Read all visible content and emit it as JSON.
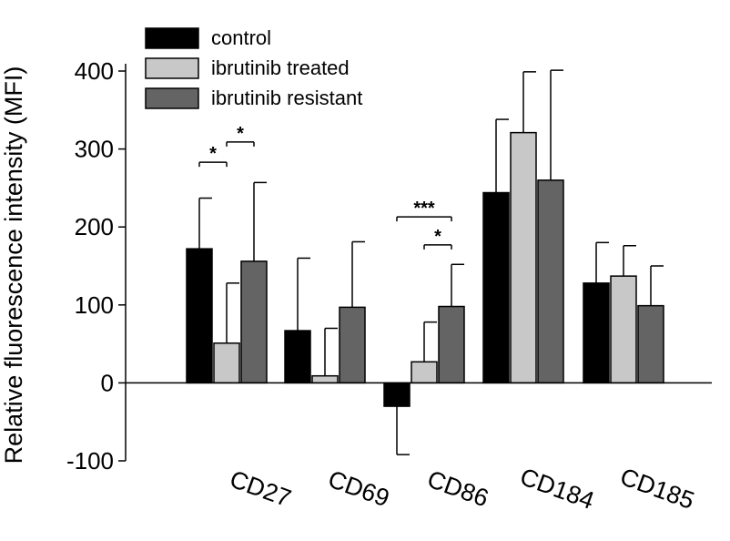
{
  "chart_data": {
    "type": "bar",
    "ylabel": "Relative fluorescence intensity (MFI)",
    "xlabel": "",
    "ylim": [
      -100,
      400
    ],
    "yticks": [
      -100,
      0,
      100,
      200,
      300,
      400
    ],
    "categories": [
      "CD27",
      "CD69",
      "CD86",
      "CD184",
      "CD185"
    ],
    "series": [
      {
        "name": "control",
        "color": "#000000",
        "values": [
          172,
          67,
          -30,
          244,
          128
        ],
        "errors": [
          65,
          93,
          62,
          94,
          52
        ]
      },
      {
        "name": "ibrutinib treated",
        "color": "#c8c8c8",
        "values": [
          51,
          9,
          27,
          321,
          137
        ],
        "errors": [
          77,
          61,
          51,
          78,
          39
        ]
      },
      {
        "name": "ibrutinib resistant",
        "color": "#646464",
        "values": [
          156,
          97,
          98,
          260,
          99
        ],
        "errors": [
          101,
          84,
          54,
          141,
          51
        ]
      }
    ],
    "annotations": [
      {
        "text": "*",
        "category": "CD27",
        "from_series": 0,
        "to_series": 1,
        "level": 283
      },
      {
        "text": "*",
        "category": "CD27",
        "from_series": 1,
        "to_series": 2,
        "level": 309
      },
      {
        "text": "***",
        "category": "CD86",
        "from_series": 0,
        "to_series": 2,
        "level": 213
      },
      {
        "text": "*",
        "category": "CD86",
        "from_series": 1,
        "to_series": 2,
        "level": 177
      }
    ],
    "legend_position": "top-left",
    "grid": false
  }
}
